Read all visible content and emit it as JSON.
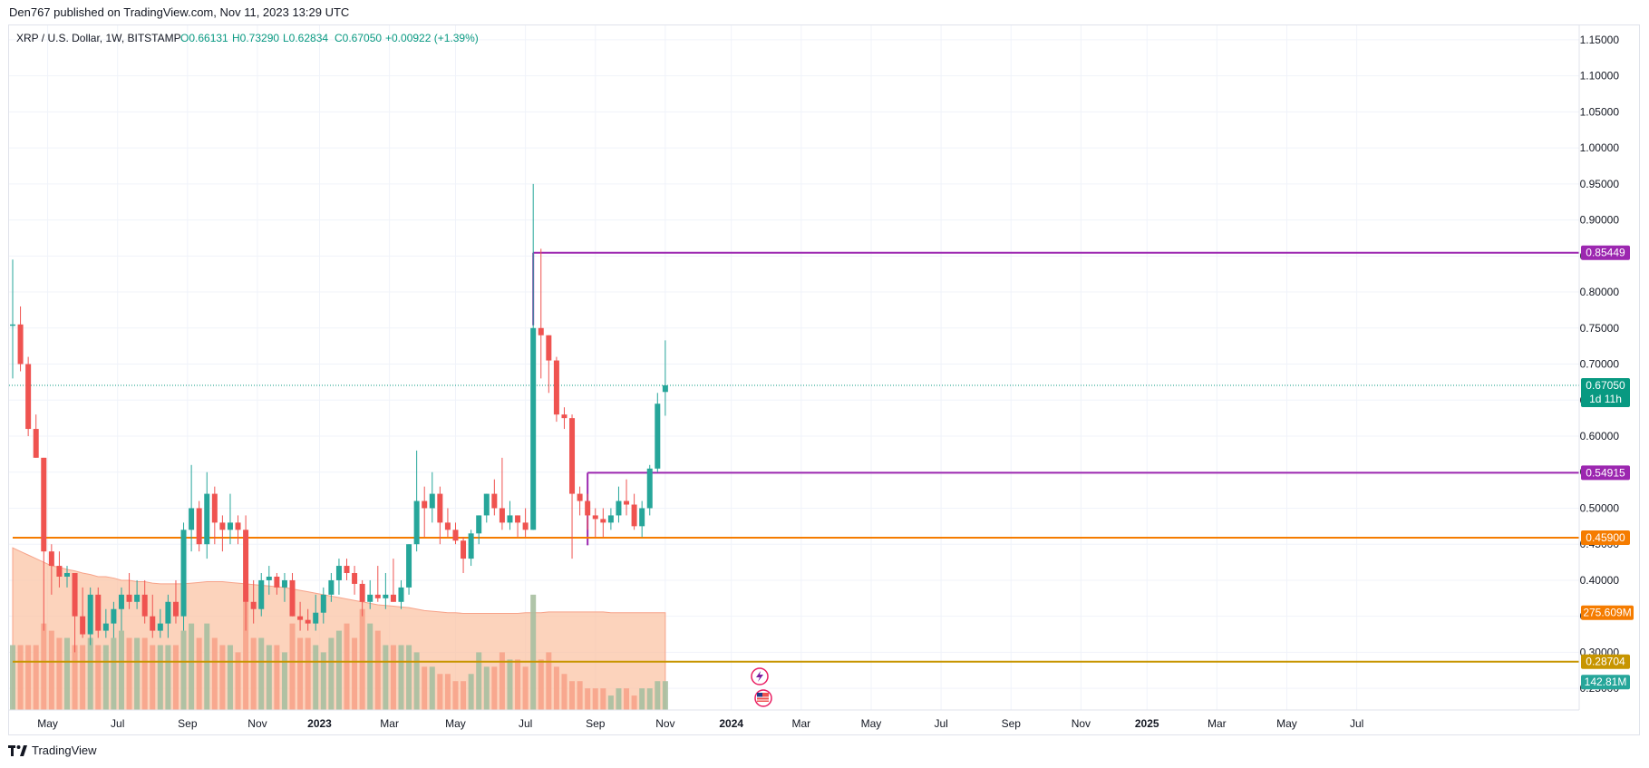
{
  "header": {
    "publish_line": "Den767 published on TradingView.com, Nov 11, 2023 13:29 UTC"
  },
  "footer": {
    "brand": "TradingView"
  },
  "legend": {
    "symbol": "XRP / U.S. Dollar, 1W, BITSTAMP",
    "open": "O0.66131",
    "high": "H0.73290",
    "low": "L0.62834",
    "close": "C0.67050",
    "change": "+0.00922 (+1.39%)"
  },
  "colors": {
    "up": "#26a69a",
    "down": "#ef5350",
    "up_volume": "#a7bfa0",
    "down_volume": "#f7a38a",
    "volume_ma_fill": "#fbc4a6",
    "resistance": "#9c27b0",
    "support_orange": "#f57c00",
    "support_gold": "#c79500",
    "last_price": "#089981",
    "volume_ma_tag": "#f57c00"
  },
  "chart_data": {
    "type": "candlestick",
    "symbol": "XRP / U.S. Dollar",
    "interval": "1W",
    "exchange": "BITSTAMP",
    "ylim": [
      0.22,
      1.17
    ],
    "y_ticks": [
      "1.15000",
      "1.10000",
      "1.05000",
      "1.00000",
      "0.95000",
      "0.90000",
      "0.85000",
      "0.80000",
      "0.75000",
      "0.70000",
      "0.65000",
      "0.60000",
      "0.55000",
      "0.50000",
      "0.45000",
      "0.40000",
      "0.35000",
      "0.30000",
      "0.25000"
    ],
    "x_ticks": [
      "May",
      "Jul",
      "Sep",
      "Nov",
      "2023",
      "Mar",
      "May",
      "Jul",
      "Sep",
      "Nov",
      "2024",
      "Mar",
      "May",
      "Jul",
      "Sep",
      "Nov",
      "2025",
      "Mar",
      "May",
      "Jul"
    ],
    "x_tick_weeks": [
      4.5,
      13.5,
      22.5,
      31.5,
      39.5,
      48.5,
      57,
      66,
      75,
      84,
      92.5,
      101.5,
      110.5,
      119.5,
      128.5,
      137.5,
      146,
      155,
      164,
      173
    ],
    "candles": [
      {
        "o": 0.755,
        "h": 0.845,
        "l": 0.68,
        "c": 0.755
      },
      {
        "o": 0.755,
        "h": 0.78,
        "l": 0.69,
        "c": 0.7
      },
      {
        "o": 0.7,
        "h": 0.71,
        "l": 0.6,
        "c": 0.61
      },
      {
        "o": 0.61,
        "h": 0.63,
        "l": 0.57,
        "c": 0.57
      },
      {
        "o": 0.57,
        "h": 0.57,
        "l": 0.33,
        "c": 0.44
      },
      {
        "o": 0.44,
        "h": 0.45,
        "l": 0.38,
        "c": 0.42
      },
      {
        "o": 0.42,
        "h": 0.44,
        "l": 0.39,
        "c": 0.405
      },
      {
        "o": 0.405,
        "h": 0.42,
        "l": 0.39,
        "c": 0.41
      },
      {
        "o": 0.41,
        "h": 0.41,
        "l": 0.3,
        "c": 0.35
      },
      {
        "o": 0.35,
        "h": 0.39,
        "l": 0.32,
        "c": 0.325
      },
      {
        "o": 0.325,
        "h": 0.39,
        "l": 0.31,
        "c": 0.38
      },
      {
        "o": 0.38,
        "h": 0.39,
        "l": 0.32,
        "c": 0.33
      },
      {
        "o": 0.33,
        "h": 0.36,
        "l": 0.32,
        "c": 0.34
      },
      {
        "o": 0.34,
        "h": 0.37,
        "l": 0.32,
        "c": 0.36
      },
      {
        "o": 0.36,
        "h": 0.39,
        "l": 0.33,
        "c": 0.38
      },
      {
        "o": 0.38,
        "h": 0.41,
        "l": 0.36,
        "c": 0.37
      },
      {
        "o": 0.37,
        "h": 0.4,
        "l": 0.36,
        "c": 0.38
      },
      {
        "o": 0.38,
        "h": 0.4,
        "l": 0.34,
        "c": 0.35
      },
      {
        "o": 0.35,
        "h": 0.38,
        "l": 0.32,
        "c": 0.33
      },
      {
        "o": 0.33,
        "h": 0.36,
        "l": 0.32,
        "c": 0.34
      },
      {
        "o": 0.34,
        "h": 0.38,
        "l": 0.32,
        "c": 0.37
      },
      {
        "o": 0.37,
        "h": 0.4,
        "l": 0.34,
        "c": 0.35
      },
      {
        "o": 0.35,
        "h": 0.48,
        "l": 0.33,
        "c": 0.47
      },
      {
        "o": 0.47,
        "h": 0.56,
        "l": 0.44,
        "c": 0.5
      },
      {
        "o": 0.5,
        "h": 0.51,
        "l": 0.44,
        "c": 0.45
      },
      {
        "o": 0.45,
        "h": 0.55,
        "l": 0.43,
        "c": 0.52
      },
      {
        "o": 0.52,
        "h": 0.53,
        "l": 0.45,
        "c": 0.48
      },
      {
        "o": 0.48,
        "h": 0.49,
        "l": 0.44,
        "c": 0.47
      },
      {
        "o": 0.47,
        "h": 0.52,
        "l": 0.45,
        "c": 0.48
      },
      {
        "o": 0.48,
        "h": 0.49,
        "l": 0.45,
        "c": 0.47
      },
      {
        "o": 0.47,
        "h": 0.49,
        "l": 0.33,
        "c": 0.37
      },
      {
        "o": 0.37,
        "h": 0.4,
        "l": 0.34,
        "c": 0.36
      },
      {
        "o": 0.36,
        "h": 0.41,
        "l": 0.35,
        "c": 0.4
      },
      {
        "o": 0.4,
        "h": 0.42,
        "l": 0.38,
        "c": 0.405
      },
      {
        "o": 0.405,
        "h": 0.41,
        "l": 0.38,
        "c": 0.39
      },
      {
        "o": 0.39,
        "h": 0.41,
        "l": 0.37,
        "c": 0.4
      },
      {
        "o": 0.4,
        "h": 0.41,
        "l": 0.35,
        "c": 0.35
      },
      {
        "o": 0.35,
        "h": 0.37,
        "l": 0.33,
        "c": 0.345
      },
      {
        "o": 0.345,
        "h": 0.36,
        "l": 0.33,
        "c": 0.34
      },
      {
        "o": 0.34,
        "h": 0.38,
        "l": 0.33,
        "c": 0.355
      },
      {
        "o": 0.355,
        "h": 0.39,
        "l": 0.34,
        "c": 0.38
      },
      {
        "o": 0.38,
        "h": 0.41,
        "l": 0.37,
        "c": 0.4
      },
      {
        "o": 0.4,
        "h": 0.43,
        "l": 0.38,
        "c": 0.42
      },
      {
        "o": 0.42,
        "h": 0.43,
        "l": 0.4,
        "c": 0.41
      },
      {
        "o": 0.41,
        "h": 0.42,
        "l": 0.38,
        "c": 0.395
      },
      {
        "o": 0.395,
        "h": 0.4,
        "l": 0.35,
        "c": 0.37
      },
      {
        "o": 0.37,
        "h": 0.4,
        "l": 0.36,
        "c": 0.38
      },
      {
        "o": 0.38,
        "h": 0.42,
        "l": 0.37,
        "c": 0.375
      },
      {
        "o": 0.375,
        "h": 0.41,
        "l": 0.36,
        "c": 0.38
      },
      {
        "o": 0.38,
        "h": 0.43,
        "l": 0.37,
        "c": 0.37
      },
      {
        "o": 0.37,
        "h": 0.4,
        "l": 0.36,
        "c": 0.39
      },
      {
        "o": 0.39,
        "h": 0.45,
        "l": 0.38,
        "c": 0.45
      },
      {
        "o": 0.45,
        "h": 0.58,
        "l": 0.44,
        "c": 0.51
      },
      {
        "o": 0.51,
        "h": 0.53,
        "l": 0.46,
        "c": 0.5
      },
      {
        "o": 0.5,
        "h": 0.55,
        "l": 0.48,
        "c": 0.52
      },
      {
        "o": 0.52,
        "h": 0.53,
        "l": 0.45,
        "c": 0.48
      },
      {
        "o": 0.48,
        "h": 0.5,
        "l": 0.46,
        "c": 0.47
      },
      {
        "o": 0.47,
        "h": 0.48,
        "l": 0.45,
        "c": 0.455
      },
      {
        "o": 0.455,
        "h": 0.46,
        "l": 0.41,
        "c": 0.43
      },
      {
        "o": 0.43,
        "h": 0.47,
        "l": 0.42,
        "c": 0.465
      },
      {
        "o": 0.465,
        "h": 0.49,
        "l": 0.45,
        "c": 0.49
      },
      {
        "o": 0.49,
        "h": 0.52,
        "l": 0.48,
        "c": 0.52
      },
      {
        "o": 0.52,
        "h": 0.54,
        "l": 0.49,
        "c": 0.5
      },
      {
        "o": 0.5,
        "h": 0.57,
        "l": 0.47,
        "c": 0.48
      },
      {
        "o": 0.48,
        "h": 0.51,
        "l": 0.47,
        "c": 0.49
      },
      {
        "o": 0.49,
        "h": 0.49,
        "l": 0.46,
        "c": 0.48
      },
      {
        "o": 0.48,
        "h": 0.5,
        "l": 0.46,
        "c": 0.47
      },
      {
        "o": 0.47,
        "h": 0.95,
        "l": 0.47,
        "c": 0.75
      },
      {
        "o": 0.75,
        "h": 0.86,
        "l": 0.68,
        "c": 0.74
      },
      {
        "o": 0.74,
        "h": 0.74,
        "l": 0.66,
        "c": 0.705
      },
      {
        "o": 0.705,
        "h": 0.71,
        "l": 0.62,
        "c": 0.63
      },
      {
        "o": 0.63,
        "h": 0.64,
        "l": 0.61,
        "c": 0.625
      },
      {
        "o": 0.625,
        "h": 0.63,
        "l": 0.43,
        "c": 0.52
      },
      {
        "o": 0.52,
        "h": 0.53,
        "l": 0.49,
        "c": 0.51
      },
      {
        "o": 0.51,
        "h": 0.52,
        "l": 0.47,
        "c": 0.49
      },
      {
        "o": 0.49,
        "h": 0.5,
        "l": 0.46,
        "c": 0.485
      },
      {
        "o": 0.485,
        "h": 0.5,
        "l": 0.46,
        "c": 0.48
      },
      {
        "o": 0.48,
        "h": 0.5,
        "l": 0.47,
        "c": 0.49
      },
      {
        "o": 0.49,
        "h": 0.53,
        "l": 0.48,
        "c": 0.51
      },
      {
        "o": 0.51,
        "h": 0.54,
        "l": 0.49,
        "c": 0.505
      },
      {
        "o": 0.505,
        "h": 0.52,
        "l": 0.47,
        "c": 0.475
      },
      {
        "o": 0.475,
        "h": 0.51,
        "l": 0.46,
        "c": 0.5
      },
      {
        "o": 0.5,
        "h": 0.56,
        "l": 0.49,
        "c": 0.555
      },
      {
        "o": 0.555,
        "h": 0.66,
        "l": 0.55,
        "c": 0.645
      },
      {
        "o": 0.6613,
        "h": 0.7329,
        "l": 0.6283,
        "c": 0.6705
      }
    ],
    "volume_ma_values": [
      0.445,
      0.44,
      0.435,
      0.43,
      0.425,
      0.42,
      0.418,
      0.415,
      0.413,
      0.41,
      0.408,
      0.405,
      0.405,
      0.403,
      0.4,
      0.4,
      0.398,
      0.398,
      0.396,
      0.395,
      0.395,
      0.395,
      0.395,
      0.396,
      0.397,
      0.398,
      0.398,
      0.398,
      0.397,
      0.396,
      0.395,
      0.394,
      0.393,
      0.392,
      0.391,
      0.39,
      0.388,
      0.386,
      0.384,
      0.382,
      0.38,
      0.378,
      0.376,
      0.374,
      0.372,
      0.37,
      0.368,
      0.366,
      0.365,
      0.364,
      0.363,
      0.362,
      0.36,
      0.358,
      0.357,
      0.356,
      0.355,
      0.355,
      0.354,
      0.354,
      0.354,
      0.354,
      0.354,
      0.354,
      0.354,
      0.354,
      0.355,
      0.355,
      0.355,
      0.356,
      0.356,
      0.356,
      0.356,
      0.356,
      0.356,
      0.356,
      0.356,
      0.355,
      0.355,
      0.355,
      0.355,
      0.355,
      0.355,
      0.355,
      0.355
    ],
    "volume_values": [
      0.31,
      0.31,
      0.31,
      0.31,
      0.34,
      0.33,
      0.32,
      0.32,
      0.31,
      0.31,
      0.32,
      0.31,
      0.31,
      0.32,
      0.33,
      0.32,
      0.32,
      0.32,
      0.31,
      0.31,
      0.31,
      0.31,
      0.33,
      0.34,
      0.32,
      0.34,
      0.32,
      0.31,
      0.31,
      0.3,
      0.37,
      0.32,
      0.32,
      0.31,
      0.31,
      0.3,
      0.34,
      0.32,
      0.32,
      0.31,
      0.3,
      0.32,
      0.33,
      0.34,
      0.32,
      0.36,
      0.34,
      0.33,
      0.31,
      0.31,
      0.31,
      0.31,
      0.3,
      0.28,
      0.28,
      0.27,
      0.27,
      0.26,
      0.26,
      0.27,
      0.3,
      0.28,
      0.28,
      0.3,
      0.29,
      0.29,
      0.28,
      0.38,
      0.29,
      0.3,
      0.28,
      0.27,
      0.26,
      0.26,
      0.25,
      0.25,
      0.25,
      0.24,
      0.25,
      0.25,
      0.24,
      0.25,
      0.25,
      0.26,
      0.26
    ],
    "horizontal_levels": [
      {
        "label": "0.85449",
        "value": 0.85449,
        "from_week": 67,
        "color": "resistance"
      },
      {
        "label": "0.54915",
        "value": 0.54915,
        "from_week": 74,
        "color": "resistance"
      },
      {
        "label": "0.45900",
        "value": 0.459,
        "from_week": 0,
        "color": "support_orange"
      },
      {
        "label": "0.28704",
        "value": 0.28704,
        "from_week": 0,
        "color": "support_gold"
      }
    ],
    "price_tags": {
      "last_price": "0.67050",
      "countdown": "1d 11h",
      "volume_ma": "275.609M",
      "volume": "142.81M"
    },
    "grid": true
  }
}
